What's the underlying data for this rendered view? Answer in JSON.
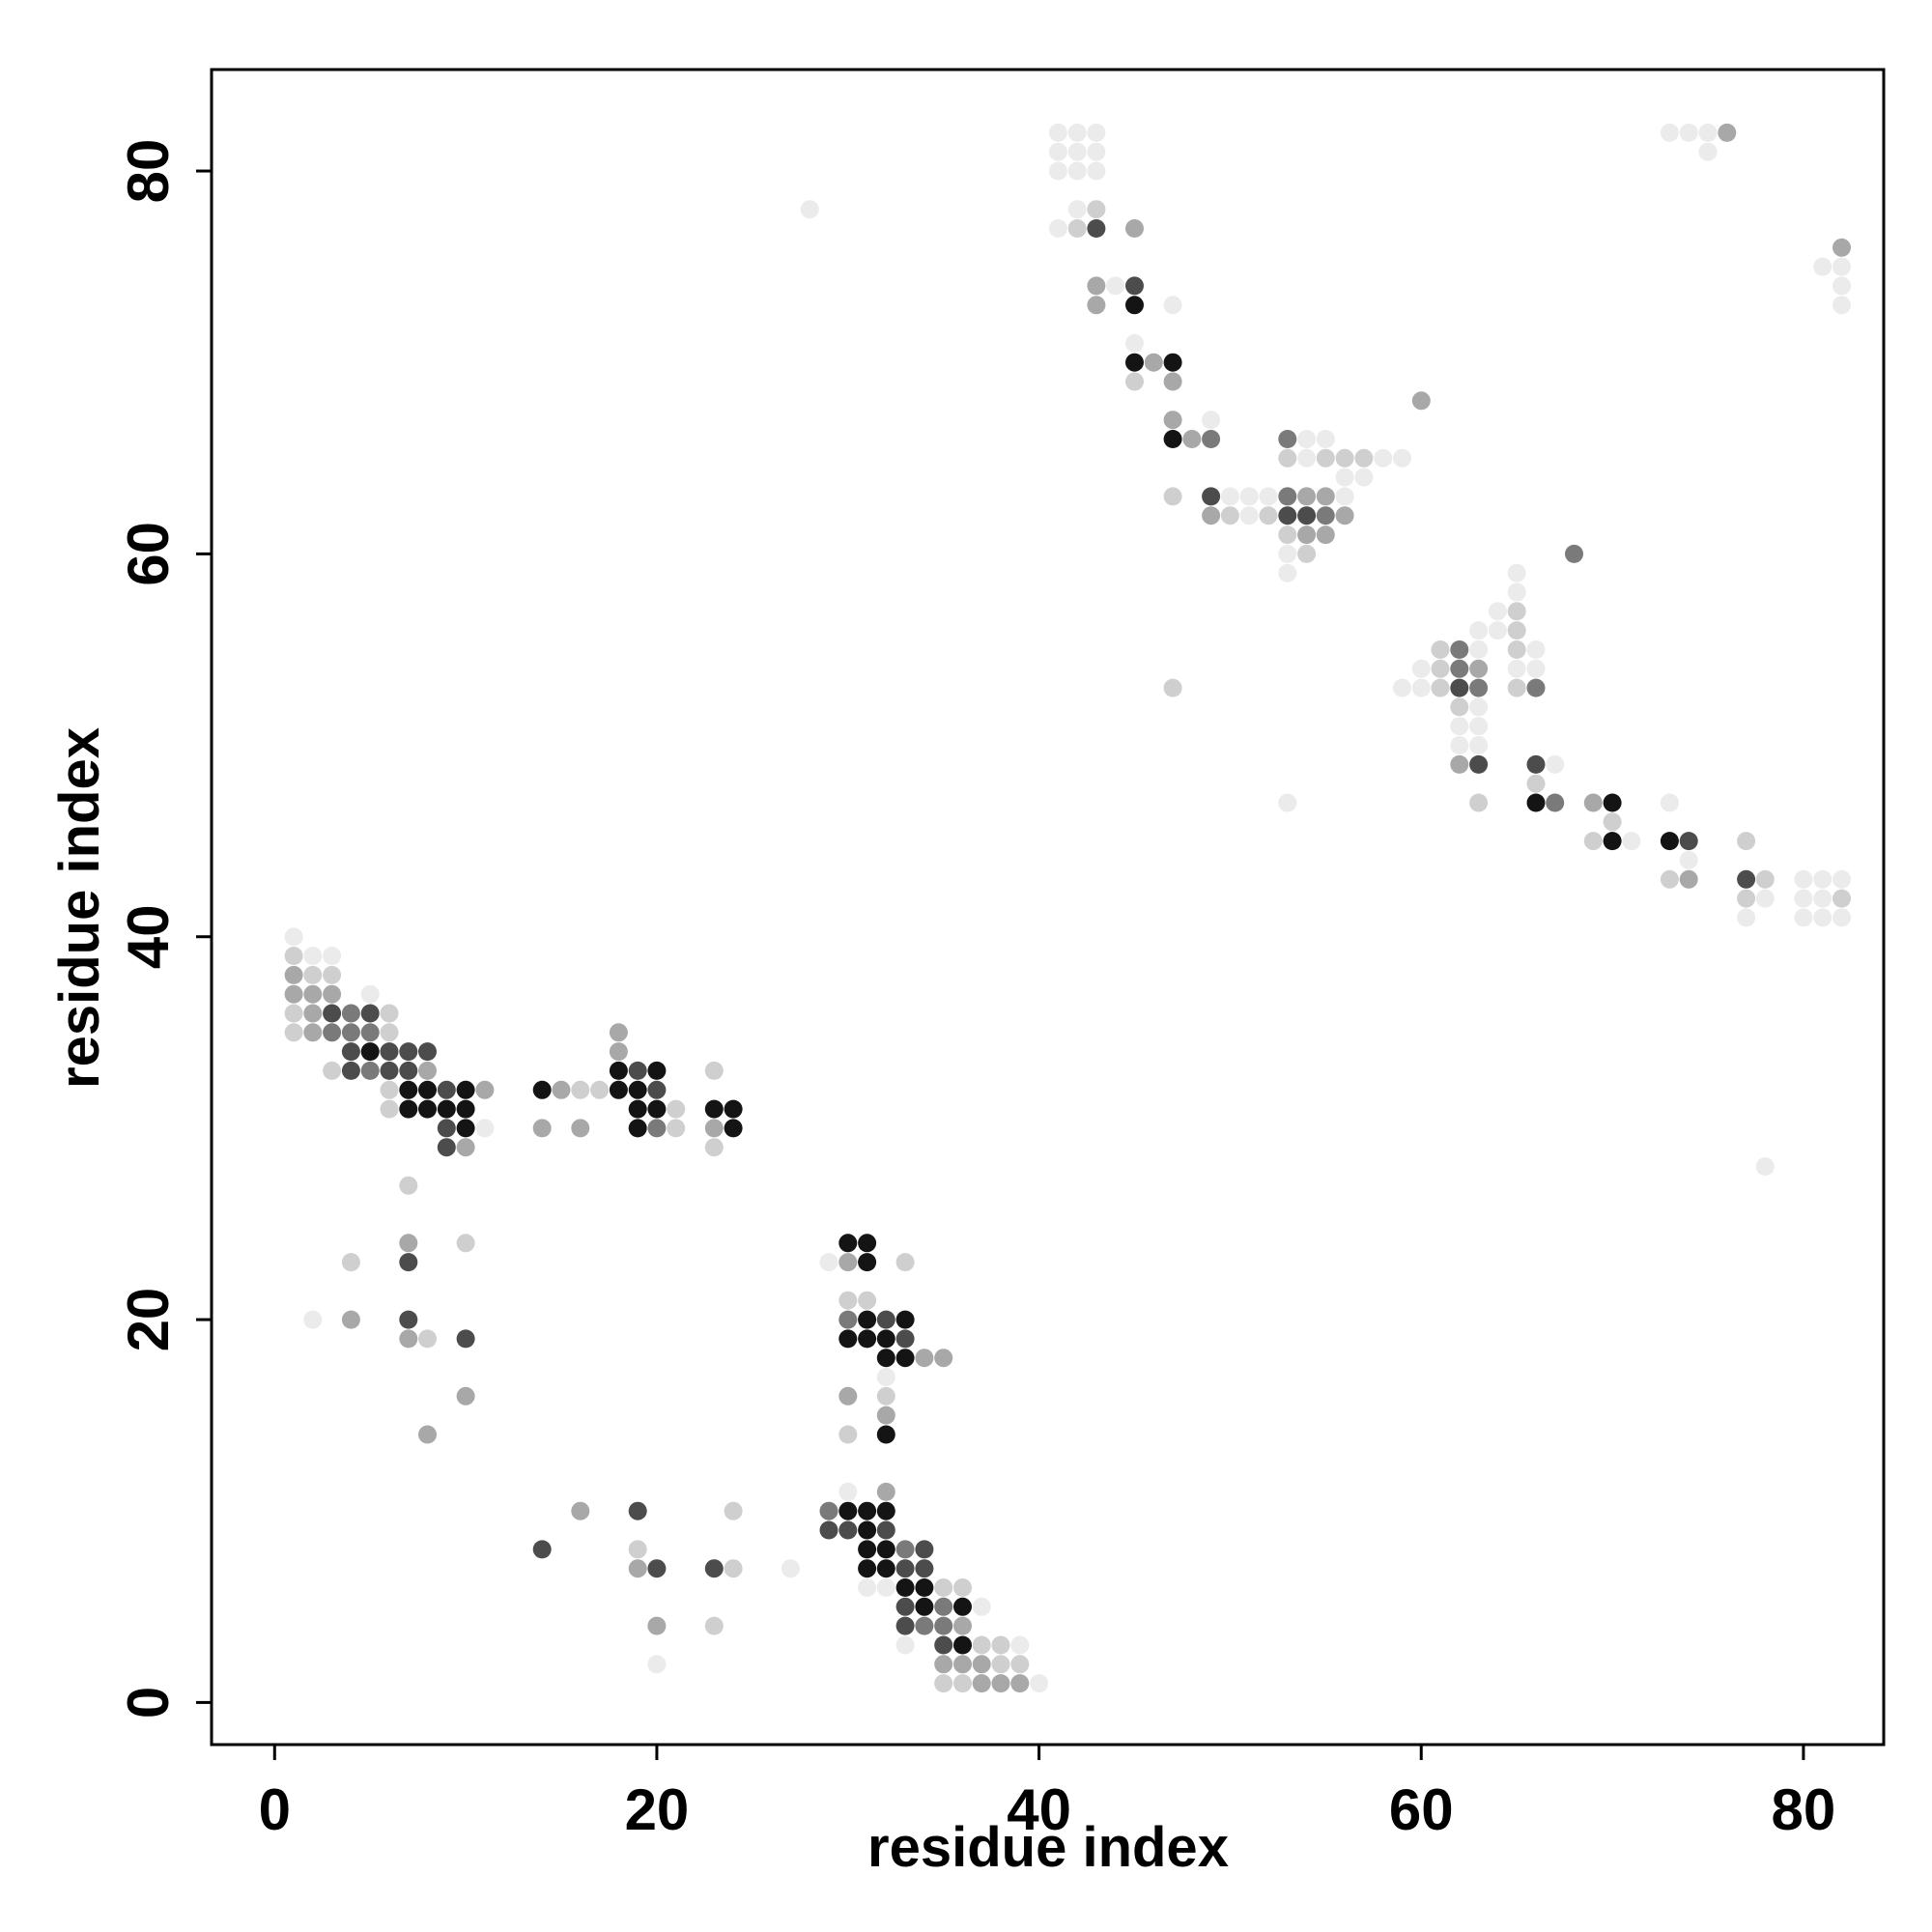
{
  "chart_data": {
    "type": "scatter",
    "title": "",
    "xlabel": "residue index",
    "ylabel": "residue index",
    "xlim": [
      -3.3,
      84.2
    ],
    "ylim": [
      -2.2,
      85.3
    ],
    "xticks": [
      0,
      20,
      40,
      60,
      80
    ],
    "yticks": [
      0,
      20,
      40,
      60,
      80
    ],
    "grid": false,
    "legend": "none",
    "marker_colors": {
      "1": "#ebebeb",
      "2": "#cfcfcf",
      "3": "#a8a8a8",
      "4": "#7a7a7a",
      "5": "#4c4c4c",
      "6": "#141414"
    },
    "points": [
      [
        1,
        40,
        1
      ],
      [
        1,
        39,
        2
      ],
      [
        2,
        39,
        1
      ],
      [
        3,
        39,
        1
      ],
      [
        1,
        38,
        3
      ],
      [
        2,
        38,
        2
      ],
      [
        3,
        38,
        2
      ],
      [
        1,
        37,
        3
      ],
      [
        2,
        37,
        3
      ],
      [
        3,
        37,
        3
      ],
      [
        5,
        37,
        1
      ],
      [
        1,
        36,
        2
      ],
      [
        2,
        36,
        3
      ],
      [
        3,
        36,
        5
      ],
      [
        4,
        36,
        4
      ],
      [
        5,
        36,
        5
      ],
      [
        6,
        36,
        2
      ],
      [
        1,
        35,
        2
      ],
      [
        2,
        35,
        3
      ],
      [
        3,
        35,
        4
      ],
      [
        4,
        35,
        4
      ],
      [
        5,
        35,
        4
      ],
      [
        6,
        35,
        2
      ],
      [
        4,
        34,
        5
      ],
      [
        5,
        34,
        6
      ],
      [
        6,
        34,
        5
      ],
      [
        7,
        34,
        5
      ],
      [
        8,
        34,
        5
      ],
      [
        3,
        33,
        2
      ],
      [
        4,
        33,
        5
      ],
      [
        5,
        33,
        4
      ],
      [
        6,
        33,
        5
      ],
      [
        7,
        33,
        5
      ],
      [
        8,
        33,
        3
      ],
      [
        6,
        32,
        2
      ],
      [
        7,
        32,
        6
      ],
      [
        8,
        32,
        6
      ],
      [
        9,
        32,
        5
      ],
      [
        10,
        32,
        6
      ],
      [
        11,
        32,
        3
      ],
      [
        6,
        31,
        2
      ],
      [
        7,
        31,
        6
      ],
      [
        8,
        31,
        6
      ],
      [
        9,
        31,
        6
      ],
      [
        10,
        31,
        6
      ],
      [
        9,
        30,
        5
      ],
      [
        10,
        30,
        6
      ],
      [
        11,
        30,
        1
      ],
      [
        9,
        29,
        5
      ],
      [
        10,
        29,
        3
      ],
      [
        7,
        27,
        2
      ],
      [
        14,
        32,
        6
      ],
      [
        15,
        32,
        3
      ],
      [
        16,
        32,
        2
      ],
      [
        17,
        32,
        2
      ],
      [
        18,
        32,
        6
      ],
      [
        19,
        32,
        6
      ],
      [
        20,
        32,
        5
      ],
      [
        18,
        33,
        6
      ],
      [
        19,
        33,
        5
      ],
      [
        20,
        33,
        6
      ],
      [
        18,
        34,
        3
      ],
      [
        18,
        35,
        3
      ],
      [
        19,
        31,
        6
      ],
      [
        20,
        31,
        6
      ],
      [
        21,
        31,
        2
      ],
      [
        19,
        30,
        6
      ],
      [
        20,
        30,
        4
      ],
      [
        21,
        30,
        2
      ],
      [
        14,
        30,
        3
      ],
      [
        16,
        30,
        3
      ],
      [
        23,
        33,
        2
      ],
      [
        23,
        31,
        6
      ],
      [
        24,
        31,
        6
      ],
      [
        23,
        30,
        3
      ],
      [
        24,
        30,
        6
      ],
      [
        23,
        29,
        2
      ],
      [
        4,
        23,
        2
      ],
      [
        7,
        24,
        3
      ],
      [
        7,
        23,
        5
      ],
      [
        10,
        24,
        2
      ],
      [
        2,
        20,
        1
      ],
      [
        4,
        20,
        3
      ],
      [
        7,
        20,
        5
      ],
      [
        7,
        19,
        3
      ],
      [
        8,
        19,
        2
      ],
      [
        10,
        19,
        5
      ],
      [
        10,
        16,
        3
      ],
      [
        8,
        14,
        3
      ],
      [
        29,
        23,
        1
      ],
      [
        30,
        24,
        6
      ],
      [
        31,
        24,
        6
      ],
      [
        30,
        23,
        3
      ],
      [
        31,
        23,
        6
      ],
      [
        33,
        23,
        2
      ],
      [
        30,
        21,
        2
      ],
      [
        31,
        21,
        2
      ],
      [
        30,
        20,
        4
      ],
      [
        31,
        20,
        6
      ],
      [
        32,
        20,
        5
      ],
      [
        33,
        20,
        6
      ],
      [
        30,
        19,
        6
      ],
      [
        31,
        19,
        6
      ],
      [
        32,
        19,
        6
      ],
      [
        33,
        19,
        5
      ],
      [
        32,
        18,
        6
      ],
      [
        33,
        18,
        6
      ],
      [
        34,
        18,
        3
      ],
      [
        35,
        18,
        3
      ],
      [
        32,
        17,
        1
      ],
      [
        30,
        16,
        3
      ],
      [
        32,
        16,
        2
      ],
      [
        32,
        15,
        3
      ],
      [
        30,
        14,
        2
      ],
      [
        32,
        14,
        6
      ],
      [
        30,
        11,
        1
      ],
      [
        32,
        11,
        3
      ],
      [
        29,
        10,
        4
      ],
      [
        30,
        10,
        6
      ],
      [
        31,
        10,
        6
      ],
      [
        32,
        10,
        6
      ],
      [
        29,
        9,
        5
      ],
      [
        30,
        9,
        5
      ],
      [
        31,
        9,
        6
      ],
      [
        32,
        9,
        5
      ],
      [
        31,
        8,
        6
      ],
      [
        32,
        8,
        6
      ],
      [
        33,
        8,
        4
      ],
      [
        34,
        8,
        5
      ],
      [
        31,
        7,
        6
      ],
      [
        32,
        7,
        6
      ],
      [
        33,
        7,
        5
      ],
      [
        34,
        7,
        5
      ],
      [
        31,
        6,
        1
      ],
      [
        32,
        6,
        1
      ],
      [
        33,
        6,
        6
      ],
      [
        34,
        6,
        6
      ],
      [
        35,
        6,
        2
      ],
      [
        36,
        6,
        2
      ],
      [
        33,
        5,
        5
      ],
      [
        34,
        5,
        6
      ],
      [
        35,
        5,
        4
      ],
      [
        36,
        5,
        6
      ],
      [
        37,
        5,
        1
      ],
      [
        33,
        4,
        5
      ],
      [
        34,
        4,
        4
      ],
      [
        35,
        4,
        4
      ],
      [
        36,
        4,
        3
      ],
      [
        33,
        3,
        1
      ],
      [
        35,
        3,
        5
      ],
      [
        36,
        3,
        6
      ],
      [
        37,
        3,
        2
      ],
      [
        38,
        3,
        2
      ],
      [
        39,
        3,
        1
      ],
      [
        35,
        2,
        3
      ],
      [
        36,
        2,
        3
      ],
      [
        37,
        2,
        3
      ],
      [
        38,
        2,
        2
      ],
      [
        39,
        2,
        2
      ],
      [
        35,
        1,
        2
      ],
      [
        36,
        1,
        2
      ],
      [
        37,
        1,
        3
      ],
      [
        38,
        1,
        3
      ],
      [
        39,
        1,
        3
      ],
      [
        40,
        1,
        1
      ],
      [
        14,
        8,
        5
      ],
      [
        16,
        10,
        3
      ],
      [
        19,
        10,
        5
      ],
      [
        19,
        8,
        2
      ],
      [
        19,
        7,
        3
      ],
      [
        20,
        7,
        5
      ],
      [
        23,
        7,
        5
      ],
      [
        24,
        7,
        2
      ],
      [
        24,
        10,
        2
      ],
      [
        20,
        4,
        3
      ],
      [
        23,
        4,
        2
      ],
      [
        20,
        2,
        1
      ],
      [
        27,
        7,
        1
      ],
      [
        28,
        78,
        1
      ],
      [
        78,
        28,
        1
      ],
      [
        41,
        82,
        1
      ],
      [
        42,
        82,
        1
      ],
      [
        43,
        82,
        1
      ],
      [
        41,
        81,
        1
      ],
      [
        42,
        81,
        1
      ],
      [
        43,
        81,
        1
      ],
      [
        41,
        80,
        1
      ],
      [
        42,
        80,
        1
      ],
      [
        43,
        80,
        1
      ],
      [
        42,
        78,
        1
      ],
      [
        43,
        78,
        2
      ],
      [
        41,
        77,
        1
      ],
      [
        42,
        77,
        2
      ],
      [
        43,
        77,
        5
      ],
      [
        45,
        77,
        3
      ],
      [
        43,
        74,
        3
      ],
      [
        44,
        74,
        1
      ],
      [
        45,
        74,
        5
      ],
      [
        43,
        73,
        3
      ],
      [
        45,
        73,
        6
      ],
      [
        47,
        73,
        1
      ],
      [
        45,
        71,
        1
      ],
      [
        45,
        70,
        6
      ],
      [
        46,
        70,
        3
      ],
      [
        47,
        70,
        6
      ],
      [
        45,
        69,
        2
      ],
      [
        47,
        69,
        3
      ],
      [
        47,
        67,
        3
      ],
      [
        49,
        67,
        1
      ],
      [
        47,
        66,
        6
      ],
      [
        48,
        66,
        3
      ],
      [
        49,
        66,
        4
      ],
      [
        47,
        63,
        2
      ],
      [
        49,
        63,
        5
      ],
      [
        50,
        63,
        1
      ],
      [
        51,
        63,
        1
      ],
      [
        52,
        63,
        1
      ],
      [
        53,
        63,
        4
      ],
      [
        54,
        63,
        3
      ],
      [
        55,
        63,
        3
      ],
      [
        56,
        63,
        1
      ],
      [
        49,
        62,
        3
      ],
      [
        50,
        62,
        2
      ],
      [
        51,
        62,
        1
      ],
      [
        52,
        62,
        2
      ],
      [
        53,
        62,
        5
      ],
      [
        54,
        62,
        5
      ],
      [
        55,
        62,
        4
      ],
      [
        56,
        62,
        3
      ],
      [
        53,
        61,
        2
      ],
      [
        54,
        61,
        3
      ],
      [
        55,
        61,
        3
      ],
      [
        53,
        60,
        1
      ],
      [
        54,
        60,
        2
      ],
      [
        53,
        59,
        1
      ],
      [
        53,
        66,
        4
      ],
      [
        54,
        66,
        1
      ],
      [
        55,
        66,
        1
      ],
      [
        53,
        65,
        2
      ],
      [
        54,
        65,
        1
      ],
      [
        55,
        65,
        2
      ],
      [
        56,
        65,
        2
      ],
      [
        57,
        65,
        2
      ],
      [
        58,
        65,
        1
      ],
      [
        59,
        65,
        1
      ],
      [
        56,
        64,
        1
      ],
      [
        57,
        64,
        1
      ],
      [
        60,
        68,
        3
      ],
      [
        47,
        53,
        2
      ],
      [
        53,
        47,
        1
      ],
      [
        65,
        59,
        1
      ],
      [
        65,
        58,
        1
      ],
      [
        64,
        57,
        1
      ],
      [
        65,
        57,
        2
      ],
      [
        63,
        56,
        1
      ],
      [
        64,
        56,
        1
      ],
      [
        65,
        56,
        2
      ],
      [
        61,
        55,
        2
      ],
      [
        62,
        55,
        4
      ],
      [
        63,
        55,
        1
      ],
      [
        65,
        55,
        2
      ],
      [
        66,
        55,
        1
      ],
      [
        60,
        54,
        1
      ],
      [
        61,
        54,
        2
      ],
      [
        62,
        54,
        4
      ],
      [
        63,
        54,
        3
      ],
      [
        65,
        54,
        1
      ],
      [
        66,
        54,
        1
      ],
      [
        59,
        53,
        1
      ],
      [
        60,
        53,
        1
      ],
      [
        61,
        53,
        2
      ],
      [
        62,
        53,
        5
      ],
      [
        63,
        53,
        4
      ],
      [
        65,
        53,
        2
      ],
      [
        66,
        53,
        4
      ],
      [
        62,
        52,
        2
      ],
      [
        63,
        52,
        1
      ],
      [
        62,
        51,
        1
      ],
      [
        63,
        51,
        1
      ],
      [
        62,
        50,
        1
      ],
      [
        63,
        50,
        1
      ],
      [
        62,
        49,
        3
      ],
      [
        63,
        49,
        5
      ],
      [
        63,
        47,
        2
      ],
      [
        66,
        49,
        5
      ],
      [
        67,
        49,
        1
      ],
      [
        66,
        48,
        2
      ],
      [
        66,
        47,
        6
      ],
      [
        67,
        47,
        4
      ],
      [
        68,
        60,
        4
      ],
      [
        69,
        47,
        3
      ],
      [
        70,
        47,
        6
      ],
      [
        70,
        46,
        2
      ],
      [
        69,
        45,
        2
      ],
      [
        70,
        45,
        6
      ],
      [
        71,
        45,
        1
      ],
      [
        73,
        47,
        1
      ],
      [
        73,
        45,
        6
      ],
      [
        74,
        45,
        5
      ],
      [
        74,
        44,
        1
      ],
      [
        73,
        43,
        2
      ],
      [
        74,
        43,
        3
      ],
      [
        77,
        45,
        2
      ],
      [
        77,
        43,
        5
      ],
      [
        78,
        43,
        2
      ],
      [
        77,
        42,
        2
      ],
      [
        78,
        42,
        1
      ],
      [
        77,
        41,
        1
      ],
      [
        80,
        43,
        1
      ],
      [
        81,
        43,
        1
      ],
      [
        82,
        43,
        1
      ],
      [
        80,
        42,
        1
      ],
      [
        81,
        42,
        1
      ],
      [
        82,
        42,
        2
      ],
      [
        80,
        41,
        1
      ],
      [
        81,
        41,
        1
      ],
      [
        82,
        41,
        1
      ],
      [
        73,
        82,
        1
      ],
      [
        74,
        82,
        1
      ],
      [
        75,
        82,
        1
      ],
      [
        76,
        82,
        3
      ],
      [
        75,
        81,
        1
      ],
      [
        82,
        76,
        3
      ],
      [
        81,
        75,
        1
      ],
      [
        82,
        75,
        1
      ],
      [
        82,
        74,
        1
      ],
      [
        82,
        73,
        1
      ]
    ]
  }
}
